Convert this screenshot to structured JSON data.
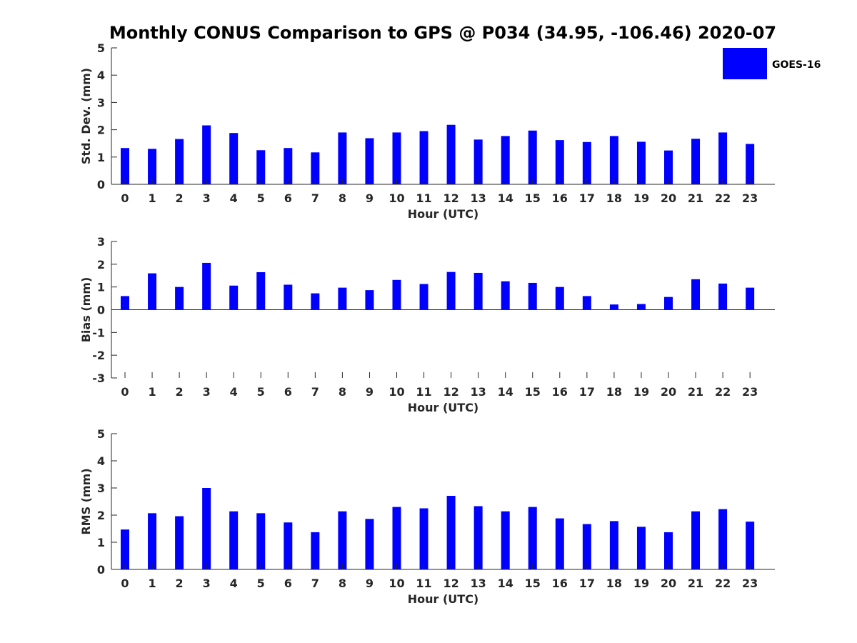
{
  "title": "Monthly CONUS Comparison to GPS @ P034 (34.95, -106.46) 2020-07",
  "legend": {
    "label": "GOES-16",
    "color": "#0000ff",
    "placement": "top-right"
  },
  "chart_data": [
    {
      "type": "bar",
      "series_name": "GOES-16",
      "xlabel": "Hour (UTC)",
      "ylabel": "Std. Dev. (mm)",
      "ylim": [
        0,
        5
      ],
      "yticks": [
        0,
        1,
        2,
        3,
        4,
        5
      ],
      "categories": [
        "0",
        "1",
        "2",
        "3",
        "4",
        "5",
        "6",
        "7",
        "8",
        "9",
        "10",
        "11",
        "12",
        "13",
        "14",
        "15",
        "16",
        "17",
        "18",
        "19",
        "20",
        "21",
        "22",
        "23"
      ],
      "values": [
        1.33,
        1.3,
        1.66,
        2.16,
        1.88,
        1.25,
        1.33,
        1.17,
        1.9,
        1.69,
        1.9,
        1.95,
        2.18,
        1.64,
        1.77,
        1.97,
        1.62,
        1.55,
        1.77,
        1.56,
        1.24,
        1.67,
        1.9,
        1.48
      ],
      "color": "#0000ff"
    },
    {
      "type": "bar",
      "series_name": "GOES-16",
      "xlabel": "Hour (UTC)",
      "ylabel": "Bias (mm)",
      "ylim": [
        -3,
        3
      ],
      "yticks": [
        -3,
        -2,
        -1,
        0,
        1,
        2,
        3
      ],
      "categories": [
        "0",
        "1",
        "2",
        "3",
        "4",
        "5",
        "6",
        "7",
        "8",
        "9",
        "10",
        "11",
        "12",
        "13",
        "14",
        "15",
        "16",
        "17",
        "18",
        "19",
        "20",
        "21",
        "22",
        "23"
      ],
      "values": [
        0.6,
        1.6,
        1.0,
        2.06,
        1.06,
        1.65,
        1.1,
        0.72,
        0.97,
        0.86,
        1.31,
        1.13,
        1.66,
        1.62,
        1.25,
        1.18,
        1.0,
        0.6,
        0.23,
        0.25,
        0.56,
        1.34,
        1.15,
        0.97
      ],
      "color": "#0000ff"
    },
    {
      "type": "bar",
      "series_name": "GOES-16",
      "xlabel": "Hour (UTC)",
      "ylabel": "RMS (mm)",
      "ylim": [
        0,
        5
      ],
      "yticks": [
        0,
        1,
        2,
        3,
        4,
        5
      ],
      "categories": [
        "0",
        "1",
        "2",
        "3",
        "4",
        "5",
        "6",
        "7",
        "8",
        "9",
        "10",
        "11",
        "12",
        "13",
        "14",
        "15",
        "16",
        "17",
        "18",
        "19",
        "20",
        "21",
        "22",
        "23"
      ],
      "values": [
        1.47,
        2.07,
        1.96,
        3.0,
        2.14,
        2.07,
        1.73,
        1.37,
        2.14,
        1.86,
        2.3,
        2.25,
        2.71,
        2.33,
        2.14,
        2.3,
        1.88,
        1.67,
        1.78,
        1.57,
        1.37,
        2.14,
        2.22,
        1.76
      ],
      "color": "#0000ff"
    }
  ]
}
